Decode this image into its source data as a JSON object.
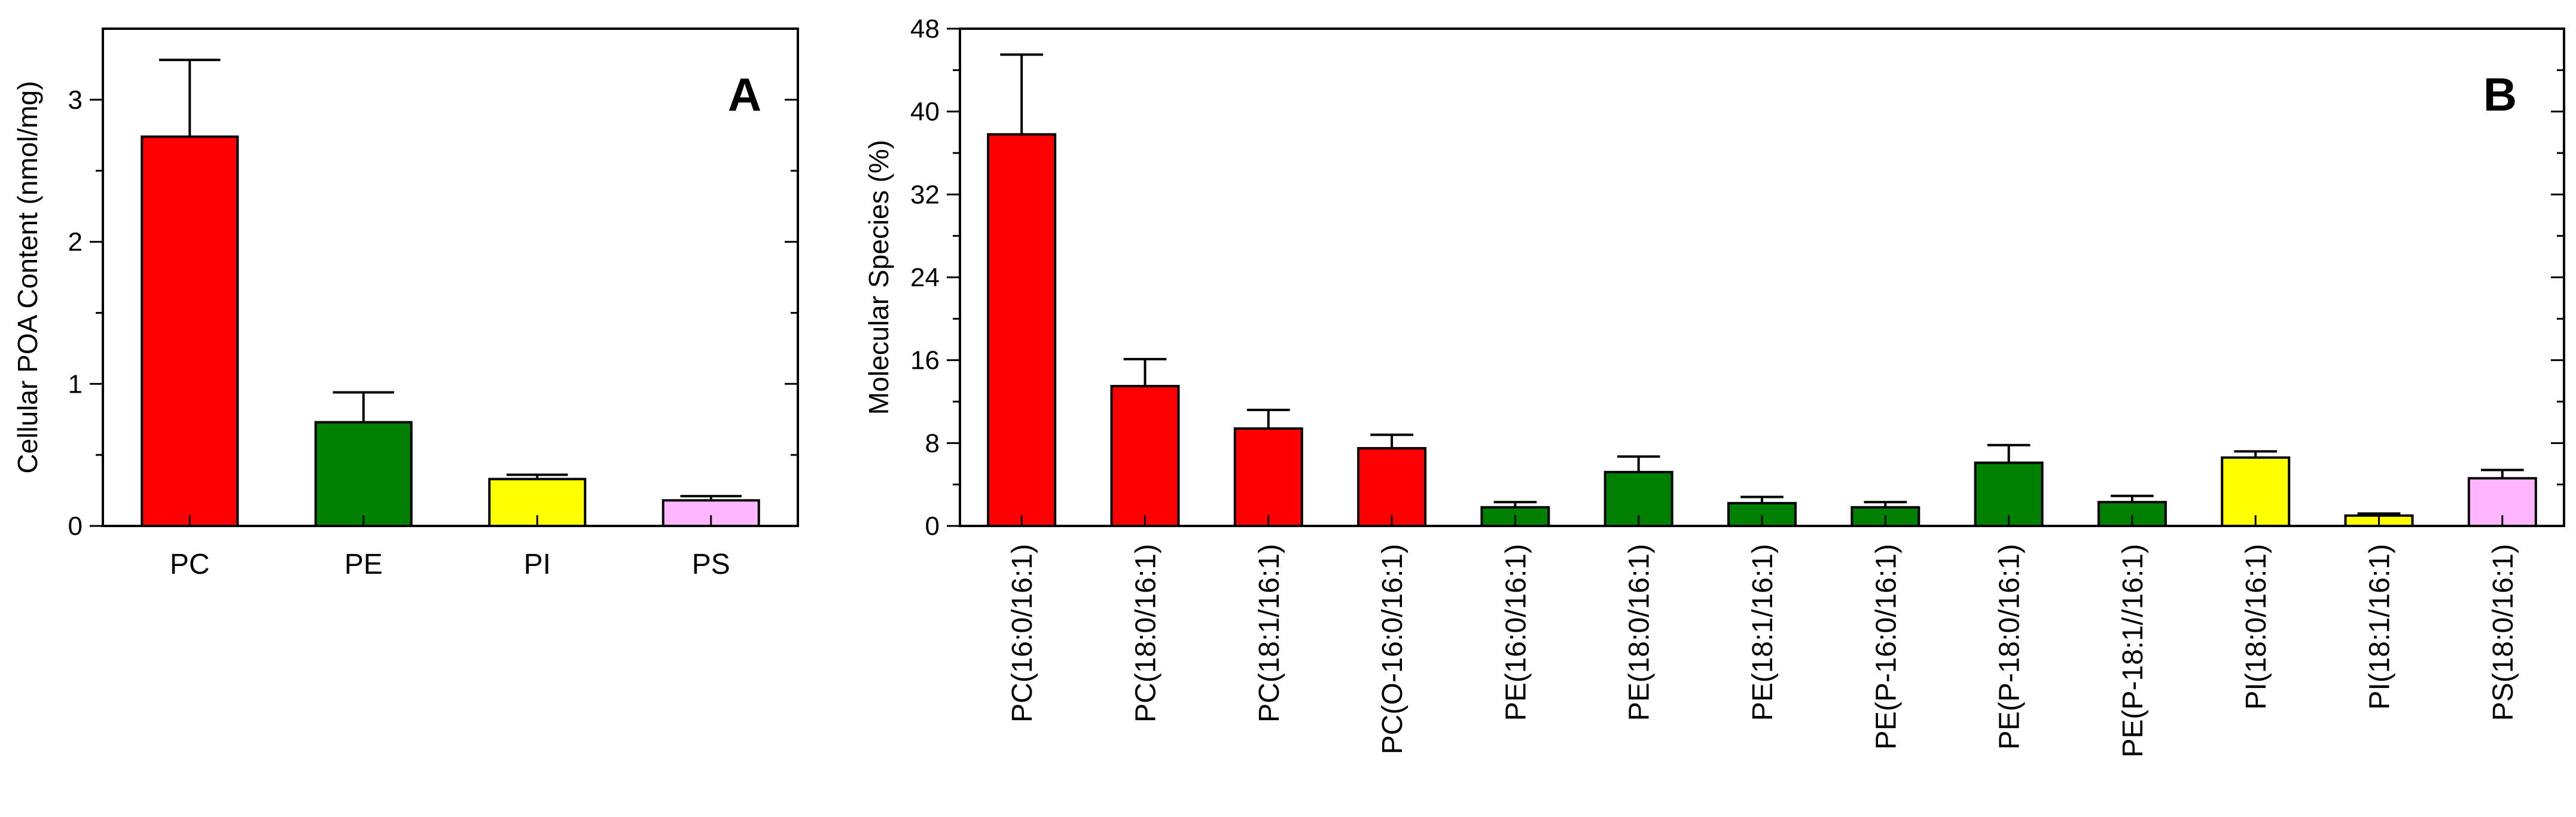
{
  "chart_data": [
    {
      "type": "bar",
      "panel_label": "A",
      "categories": [
        "PC",
        "PE",
        "PI",
        "PS"
      ],
      "values": [
        2.74,
        0.73,
        0.33,
        0.18
      ],
      "errors": [
        0.54,
        0.21,
        0.03,
        0.03
      ],
      "colors": [
        "#ff0000",
        "#008000",
        "#ffff00",
        "#ffb6ff"
      ],
      "title": "",
      "xlabel": "",
      "ylabel": "Cellular POA Content (nmol/mg)",
      "ylim": [
        0,
        3.5
      ],
      "yticks": [
        "0",
        "1",
        "2",
        "3"
      ],
      "ytick_values": [
        0,
        1,
        2,
        3
      ],
      "grid": false,
      "legend": "none"
    },
    {
      "type": "bar",
      "panel_label": "B",
      "categories": [
        "PC(16:0/16:1)",
        "PC(18:0/16:1)",
        "PC(18:1/16:1)",
        "PC(O-16:0/16:1)",
        "PE(16:0/16:1)",
        "PE(18:0/16:1)",
        "PE(18:1/16:1)",
        "PE(P-16:0/16:1)",
        "PE(P-18:0/16:1)",
        "PE(P-18:1//16:1)",
        "PI(18:0/16:1)",
        "PI(18:1/16:1)",
        "PS(18:0/16:1)"
      ],
      "values": [
        37.8,
        13.5,
        9.4,
        7.5,
        1.8,
        5.2,
        2.2,
        1.8,
        6.1,
        2.3,
        6.6,
        1.0,
        4.6
      ],
      "errors": [
        7.7,
        2.6,
        1.8,
        1.3,
        0.5,
        1.5,
        0.6,
        0.5,
        1.7,
        0.6,
        0.6,
        0.2,
        0.8
      ],
      "colors": [
        "#ff0000",
        "#ff0000",
        "#ff0000",
        "#ff0000",
        "#008000",
        "#008000",
        "#008000",
        "#008000",
        "#008000",
        "#008000",
        "#ffff00",
        "#ffff00",
        "#ffb6ff"
      ],
      "title": "",
      "xlabel": "",
      "ylabel": "Molecular Species (%)",
      "ylim": [
        0,
        48
      ],
      "yticks": [
        "0",
        "8",
        "16",
        "24",
        "32",
        "40",
        "48"
      ],
      "ytick_values": [
        0,
        8,
        16,
        24,
        32,
        40,
        48
      ],
      "grid": false,
      "legend": "none"
    }
  ]
}
